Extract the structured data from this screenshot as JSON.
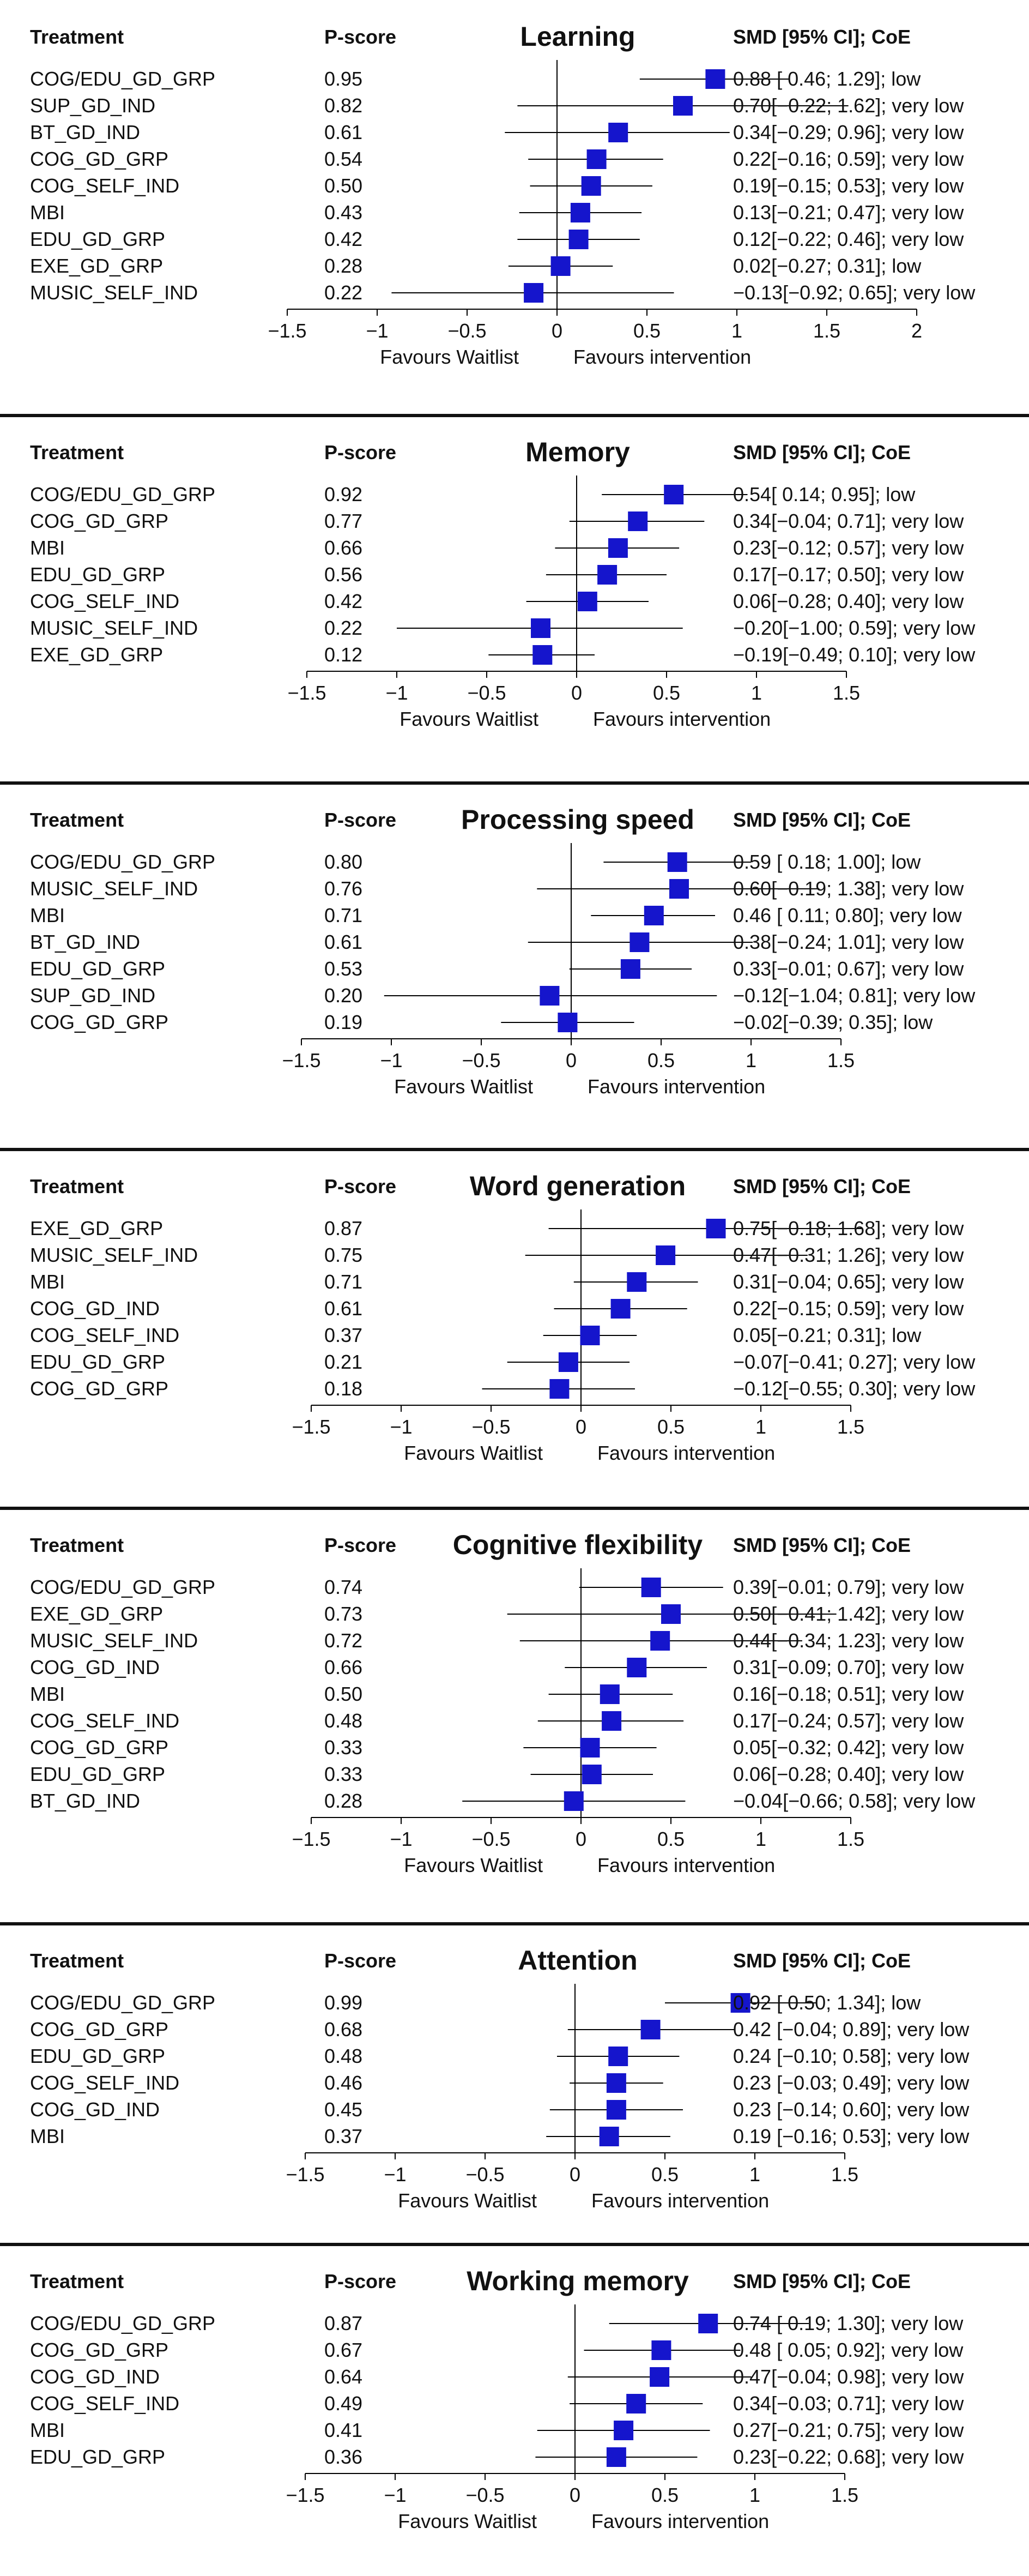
{
  "headers": {
    "treatment": "Treatment",
    "pscore": "P-score",
    "smd": "SMD [95% CI]; CoE"
  },
  "favours": {
    "left": "Favours Waitlist",
    "right": "Favours intervention"
  },
  "colors": {
    "marker": "#1515cc",
    "line": "#000000"
  },
  "chart_data": [
    {
      "type": "forest",
      "title": "Learning",
      "xlim": [
        -1.5,
        2
      ],
      "ticks": [
        -1.5,
        -1,
        -0.5,
        0,
        0.5,
        1,
        1.5,
        2
      ],
      "tick_labels": [
        "−1.5",
        "−1",
        "−0.5",
        "0",
        "0.5",
        "1",
        "1.5",
        "2"
      ],
      "rows": [
        {
          "treatment": "COG/EDU_GD_GRP",
          "pscore": "0.95",
          "smd": 0.88,
          "lower": 0.46,
          "upper": 1.29,
          "label": "0.88 [ 0.46; 1.29]; low"
        },
        {
          "treatment": "SUP_GD_IND",
          "pscore": "0.82",
          "smd": 0.7,
          "lower": -0.22,
          "upper": 1.62,
          "label": "0.70[−0.22; 1.62]; very low"
        },
        {
          "treatment": "BT_GD_IND",
          "pscore": "0.61",
          "smd": 0.34,
          "lower": -0.29,
          "upper": 0.96,
          "label": "0.34[−0.29; 0.96]; very low"
        },
        {
          "treatment": "COG_GD_GRP",
          "pscore": "0.54",
          "smd": 0.22,
          "lower": -0.16,
          "upper": 0.59,
          "label": "0.22[−0.16; 0.59]; very low"
        },
        {
          "treatment": "COG_SELF_IND",
          "pscore": "0.50",
          "smd": 0.19,
          "lower": -0.15,
          "upper": 0.53,
          "label": "0.19[−0.15; 0.53]; very low"
        },
        {
          "treatment": "MBI",
          "pscore": "0.43",
          "smd": 0.13,
          "lower": -0.21,
          "upper": 0.47,
          "label": "0.13[−0.21; 0.47]; very low"
        },
        {
          "treatment": "EDU_GD_GRP",
          "pscore": "0.42",
          "smd": 0.12,
          "lower": -0.22,
          "upper": 0.46,
          "label": "0.12[−0.22; 0.46]; very low"
        },
        {
          "treatment": "EXE_GD_GRP",
          "pscore": "0.28",
          "smd": 0.02,
          "lower": -0.27,
          "upper": 0.31,
          "label": "0.02[−0.27; 0.31]; low"
        },
        {
          "treatment": "MUSIC_SELF_IND",
          "pscore": "0.22",
          "smd": -0.13,
          "lower": -0.92,
          "upper": 0.65,
          "label": "−0.13[−0.92; 0.65]; very low"
        }
      ]
    },
    {
      "type": "forest",
      "title": "Memory",
      "xlim": [
        -1.5,
        1.5
      ],
      "ticks": [
        -1.5,
        -1,
        -0.5,
        0,
        0.5,
        1,
        1.5
      ],
      "tick_labels": [
        "−1.5",
        "−1",
        "−0.5",
        "0",
        "0.5",
        "1",
        "1.5"
      ],
      "rows": [
        {
          "treatment": "COG/EDU_GD_GRP",
          "pscore": "0.92",
          "smd": 0.54,
          "lower": 0.14,
          "upper": 0.95,
          "label": "0.54[ 0.14; 0.95]; low"
        },
        {
          "treatment": "COG_GD_GRP",
          "pscore": "0.77",
          "smd": 0.34,
          "lower": -0.04,
          "upper": 0.71,
          "label": "0.34[−0.04; 0.71]; very low"
        },
        {
          "treatment": "MBI",
          "pscore": "0.66",
          "smd": 0.23,
          "lower": -0.12,
          "upper": 0.57,
          "label": "0.23[−0.12; 0.57]; very low"
        },
        {
          "treatment": "EDU_GD_GRP",
          "pscore": "0.56",
          "smd": 0.17,
          "lower": -0.17,
          "upper": 0.5,
          "label": "0.17[−0.17; 0.50]; very low"
        },
        {
          "treatment": "COG_SELF_IND",
          "pscore": "0.42",
          "smd": 0.06,
          "lower": -0.28,
          "upper": 0.4,
          "label": "0.06[−0.28; 0.40]; very low"
        },
        {
          "treatment": "MUSIC_SELF_IND",
          "pscore": "0.22",
          "smd": -0.2,
          "lower": -1.0,
          "upper": 0.59,
          "label": "−0.20[−1.00; 0.59]; very low"
        },
        {
          "treatment": "EXE_GD_GRP",
          "pscore": "0.12",
          "smd": -0.19,
          "lower": -0.49,
          "upper": 0.1,
          "label": "−0.19[−0.49; 0.10]; very low"
        }
      ]
    },
    {
      "type": "forest",
      "title": "Processing speed",
      "xlim": [
        -1.5,
        1.5
      ],
      "ticks": [
        -1.5,
        -1,
        -0.5,
        0,
        0.5,
        1,
        1.5
      ],
      "tick_labels": [
        "−1.5",
        "−1",
        "−0.5",
        "0",
        "0.5",
        "1",
        "1.5"
      ],
      "rows": [
        {
          "treatment": "COG/EDU_GD_GRP",
          "pscore": "0.80",
          "smd": 0.59,
          "lower": 0.18,
          "upper": 1.0,
          "label": "0.59 [ 0.18; 1.00]; low"
        },
        {
          "treatment": "MUSIC_SELF_IND",
          "pscore": "0.76",
          "smd": 0.6,
          "lower": -0.19,
          "upper": 1.38,
          "label": "0.60[−0.19; 1.38]; very low"
        },
        {
          "treatment": "MBI",
          "pscore": "0.71",
          "smd": 0.46,
          "lower": 0.11,
          "upper": 0.8,
          "label": "0.46 [ 0.11; 0.80]; very low"
        },
        {
          "treatment": "BT_GD_IND",
          "pscore": "0.61",
          "smd": 0.38,
          "lower": -0.24,
          "upper": 1.01,
          "label": "0.38[−0.24; 1.01]; very low"
        },
        {
          "treatment": "EDU_GD_GRP",
          "pscore": "0.53",
          "smd": 0.33,
          "lower": -0.01,
          "upper": 0.67,
          "label": "0.33[−0.01; 0.67]; very low"
        },
        {
          "treatment": "SUP_GD_IND",
          "pscore": "0.20",
          "smd": -0.12,
          "lower": -1.04,
          "upper": 0.81,
          "label": "−0.12[−1.04; 0.81]; very low"
        },
        {
          "treatment": "COG_GD_GRP",
          "pscore": "0.19",
          "smd": -0.02,
          "lower": -0.39,
          "upper": 0.35,
          "label": "−0.02[−0.39; 0.35]; low"
        }
      ]
    },
    {
      "type": "forest",
      "title": "Word generation",
      "xlim": [
        -1.5,
        1.5
      ],
      "ticks": [
        -1.5,
        -1,
        -0.5,
        0,
        0.5,
        1,
        1.5
      ],
      "tick_labels": [
        "−1.5",
        "−1",
        "−0.5",
        "0",
        "0.5",
        "1",
        "1.5"
      ],
      "rows": [
        {
          "treatment": "EXE_GD_GRP",
          "pscore": "0.87",
          "smd": 0.75,
          "lower": -0.18,
          "upper": 1.68,
          "label": "0.75[−0.18; 1.68]; very low"
        },
        {
          "treatment": "MUSIC_SELF_IND",
          "pscore": "0.75",
          "smd": 0.47,
          "lower": -0.31,
          "upper": 1.26,
          "label": "0.47[−0.31; 1.26]; very low"
        },
        {
          "treatment": "MBI",
          "pscore": "0.71",
          "smd": 0.31,
          "lower": -0.04,
          "upper": 0.65,
          "label": "0.31[−0.04; 0.65]; very low"
        },
        {
          "treatment": "COG_GD_IND",
          "pscore": "0.61",
          "smd": 0.22,
          "lower": -0.15,
          "upper": 0.59,
          "label": "0.22[−0.15; 0.59]; very low"
        },
        {
          "treatment": "COG_SELF_IND",
          "pscore": "0.37",
          "smd": 0.05,
          "lower": -0.21,
          "upper": 0.31,
          "label": "0.05[−0.21; 0.31]; low"
        },
        {
          "treatment": "EDU_GD_GRP",
          "pscore": "0.21",
          "smd": -0.07,
          "lower": -0.41,
          "upper": 0.27,
          "label": "−0.07[−0.41; 0.27]; very low"
        },
        {
          "treatment": "COG_GD_GRP",
          "pscore": "0.18",
          "smd": -0.12,
          "lower": -0.55,
          "upper": 0.3,
          "label": "−0.12[−0.55; 0.30]; very low"
        }
      ]
    },
    {
      "type": "forest",
      "title": "Cognitive flexibility",
      "xlim": [
        -1.5,
        1.5
      ],
      "ticks": [
        -1.5,
        -1,
        -0.5,
        0,
        0.5,
        1,
        1.5
      ],
      "tick_labels": [
        "−1.5",
        "−1",
        "−0.5",
        "0",
        "0.5",
        "1",
        "1.5"
      ],
      "rows": [
        {
          "treatment": "COG/EDU_GD_GRP",
          "pscore": "0.74",
          "smd": 0.39,
          "lower": -0.01,
          "upper": 0.79,
          "label": "0.39[−0.01; 0.79]; very low"
        },
        {
          "treatment": "EXE_GD_GRP",
          "pscore": "0.73",
          "smd": 0.5,
          "lower": -0.41,
          "upper": 1.42,
          "label": "0.50[−0.41; 1.42]; very low"
        },
        {
          "treatment": "MUSIC_SELF_IND",
          "pscore": "0.72",
          "smd": 0.44,
          "lower": -0.34,
          "upper": 1.23,
          "label": "0.44[−0.34; 1.23]; very low"
        },
        {
          "treatment": "COG_GD_IND",
          "pscore": "0.66",
          "smd": 0.31,
          "lower": -0.09,
          "upper": 0.7,
          "label": "0.31[−0.09; 0.70]; very low"
        },
        {
          "treatment": "MBI",
          "pscore": "0.50",
          "smd": 0.16,
          "lower": -0.18,
          "upper": 0.51,
          "label": "0.16[−0.18; 0.51]; very low"
        },
        {
          "treatment": "COG_SELF_IND",
          "pscore": "0.48",
          "smd": 0.17,
          "lower": -0.24,
          "upper": 0.57,
          "label": "0.17[−0.24; 0.57]; very low"
        },
        {
          "treatment": "COG_GD_GRP",
          "pscore": "0.33",
          "smd": 0.05,
          "lower": -0.32,
          "upper": 0.42,
          "label": "0.05[−0.32; 0.42]; very low"
        },
        {
          "treatment": "EDU_GD_GRP",
          "pscore": "0.33",
          "smd": 0.06,
          "lower": -0.28,
          "upper": 0.4,
          "label": "0.06[−0.28; 0.40]; very low"
        },
        {
          "treatment": "BT_GD_IND",
          "pscore": "0.28",
          "smd": -0.04,
          "lower": -0.66,
          "upper": 0.58,
          "label": "−0.04[−0.66; 0.58]; very low"
        }
      ]
    },
    {
      "type": "forest",
      "title": "Attention",
      "xlim": [
        -1.5,
        1.5
      ],
      "ticks": [
        -1.5,
        -1,
        -0.5,
        0,
        0.5,
        1,
        1.5
      ],
      "tick_labels": [
        "−1.5",
        "−1",
        "−0.5",
        "0",
        "0.5",
        "1",
        "1.5"
      ],
      "rows": [
        {
          "treatment": "COG/EDU_GD_GRP",
          "pscore": "0.99",
          "smd": 0.92,
          "lower": 0.5,
          "upper": 1.34,
          "label": "0.92 [ 0.50; 1.34]; low"
        },
        {
          "treatment": "COG_GD_GRP",
          "pscore": "0.68",
          "smd": 0.42,
          "lower": -0.04,
          "upper": 0.89,
          "label": "0.42 [−0.04; 0.89]; very low"
        },
        {
          "treatment": "EDU_GD_GRP",
          "pscore": "0.48",
          "smd": 0.24,
          "lower": -0.1,
          "upper": 0.58,
          "label": "0.24 [−0.10; 0.58]; very low"
        },
        {
          "treatment": "COG_SELF_IND",
          "pscore": "0.46",
          "smd": 0.23,
          "lower": -0.03,
          "upper": 0.49,
          "label": "0.23 [−0.03; 0.49]; very low"
        },
        {
          "treatment": "COG_GD_IND",
          "pscore": "0.45",
          "smd": 0.23,
          "lower": -0.14,
          "upper": 0.6,
          "label": "0.23 [−0.14; 0.60]; very low"
        },
        {
          "treatment": "MBI",
          "pscore": "0.37",
          "smd": 0.19,
          "lower": -0.16,
          "upper": 0.53,
          "label": "0.19 [−0.16; 0.53]; very low"
        }
      ]
    },
    {
      "type": "forest",
      "title": "Working memory",
      "xlim": [
        -1.5,
        1.5
      ],
      "ticks": [
        -1.5,
        -1,
        -0.5,
        0,
        0.5,
        1,
        1.5
      ],
      "tick_labels": [
        "−1.5",
        "−1",
        "−0.5",
        "0",
        "0.5",
        "1",
        "1.5"
      ],
      "rows": [
        {
          "treatment": "COG/EDU_GD_GRP",
          "pscore": "0.87",
          "smd": 0.74,
          "lower": 0.19,
          "upper": 1.3,
          "label": "0.74 [ 0.19; 1.30]; very low"
        },
        {
          "treatment": "COG_GD_GRP",
          "pscore": "0.67",
          "smd": 0.48,
          "lower": 0.05,
          "upper": 0.92,
          "label": "0.48 [ 0.05; 0.92]; very low"
        },
        {
          "treatment": "COG_GD_IND",
          "pscore": "0.64",
          "smd": 0.47,
          "lower": -0.04,
          "upper": 0.98,
          "label": "0.47[−0.04; 0.98]; very low"
        },
        {
          "treatment": "COG_SELF_IND",
          "pscore": "0.49",
          "smd": 0.34,
          "lower": -0.03,
          "upper": 0.71,
          "label": "0.34[−0.03; 0.71]; very low"
        },
        {
          "treatment": "MBI",
          "pscore": "0.41",
          "smd": 0.27,
          "lower": -0.21,
          "upper": 0.75,
          "label": "0.27[−0.21; 0.75]; very low"
        },
        {
          "treatment": "EDU_GD_GRP",
          "pscore": "0.36",
          "smd": 0.23,
          "lower": -0.22,
          "upper": 0.68,
          "label": "0.23[−0.22; 0.68]; very low"
        }
      ]
    }
  ]
}
